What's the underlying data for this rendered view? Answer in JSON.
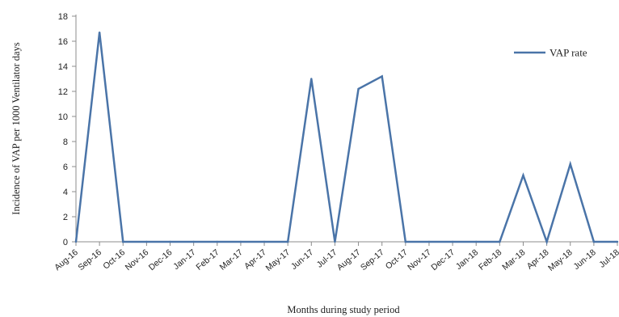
{
  "chart_data": {
    "type": "line",
    "xlabel": "Months during study period",
    "ylabel": "Incidence of VAP per 1000 Ventilator days",
    "ylim": [
      0,
      18
    ],
    "yticks": [
      0,
      2,
      4,
      6,
      8,
      10,
      12,
      14,
      16,
      18
    ],
    "grid": false,
    "legend_position": "top-right",
    "categories": [
      "Aug-16",
      "Sep-16",
      "Oct-16",
      "Nov-16",
      "Dec-16",
      "Jan-17",
      "Feb-17",
      "Mar-17",
      "Apr-17",
      "May-17",
      "Jun-17",
      "Jul-17",
      "Aug-17",
      "Sep-17",
      "Oct-17",
      "Nov-17",
      "Dec-17",
      "Jan-18",
      "Feb-18",
      "Mar-18",
      "Apr-18",
      "May-18",
      "Jun-18",
      "Jul-18"
    ],
    "series": [
      {
        "name": "VAP rate",
        "color": "#4a74a8",
        "values": [
          0,
          16.7,
          0,
          0,
          0,
          0,
          0,
          0,
          0,
          0,
          13.0,
          0,
          12.2,
          13.2,
          0,
          0,
          0,
          0,
          0,
          5.3,
          0,
          6.2,
          0,
          0
        ]
      }
    ]
  }
}
